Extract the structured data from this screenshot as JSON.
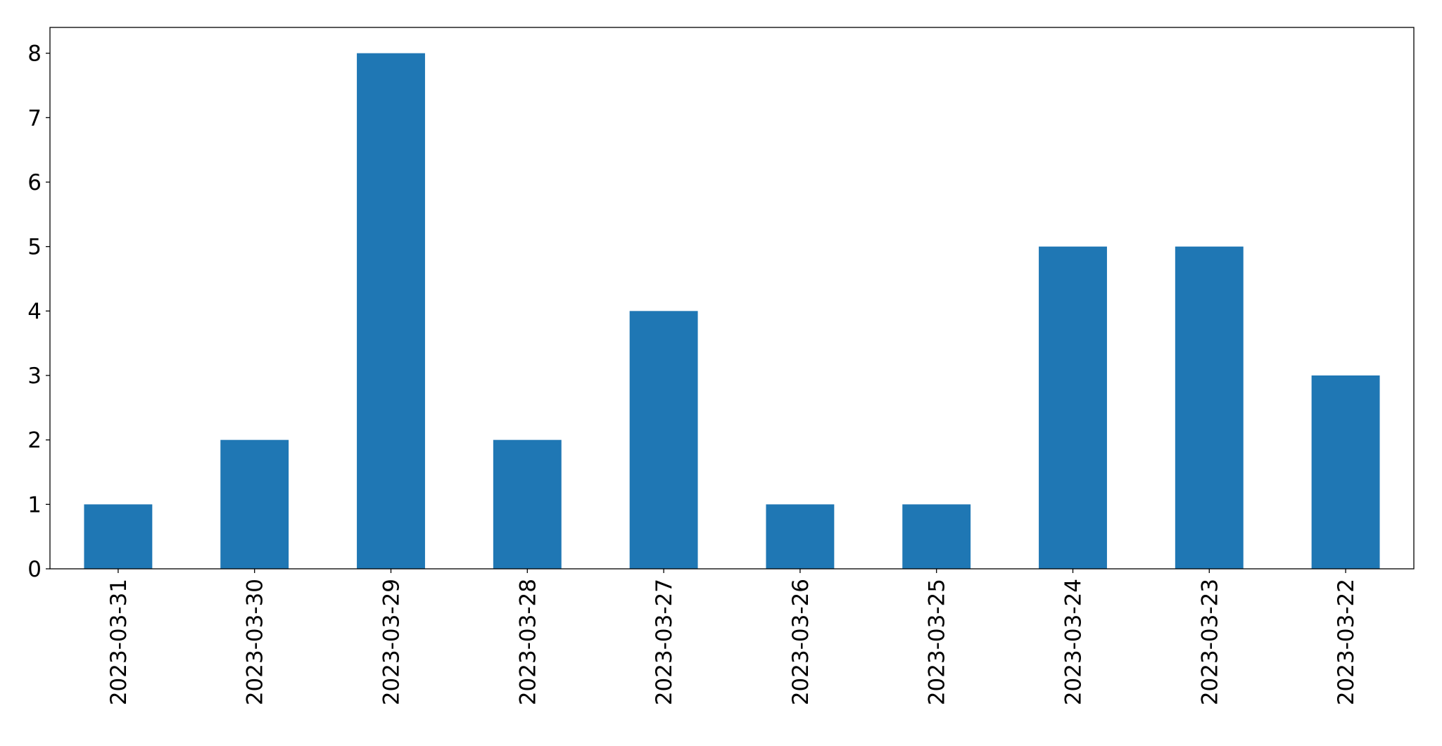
{
  "chart_data": {
    "type": "bar",
    "categories": [
      "2023-03-31",
      "2023-03-30",
      "2023-03-29",
      "2023-03-28",
      "2023-03-27",
      "2023-03-26",
      "2023-03-25",
      "2023-03-24",
      "2023-03-23",
      "2023-03-22"
    ],
    "values": [
      1,
      2,
      8,
      2,
      4,
      1,
      1,
      5,
      5,
      3
    ],
    "color": "#1f77b4",
    "ylim": [
      0,
      8.4
    ],
    "yticks": [
      0,
      1,
      2,
      3,
      4,
      5,
      6,
      7,
      8
    ],
    "grid": false
  }
}
